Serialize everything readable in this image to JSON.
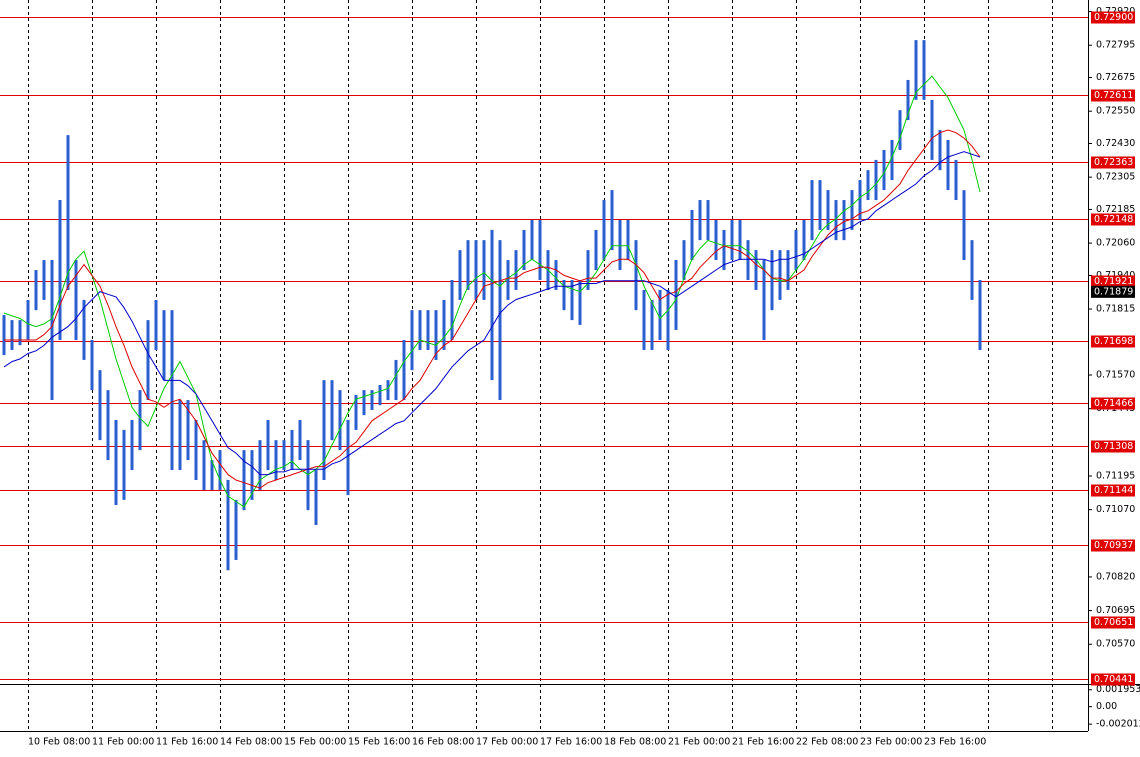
{
  "chart_data": {
    "type": "ohlc",
    "categories": [
      null,
      null,
      null,
      "10 Feb 08:00",
      null,
      null,
      null,
      null,
      null,
      null,
      null,
      "11 Feb 00:00",
      null,
      null,
      null,
      null,
      null,
      null,
      null,
      "11 Feb 16:00",
      null,
      null,
      null,
      null,
      null,
      null,
      null,
      "14 Feb 08:00",
      null,
      null,
      null,
      null,
      null,
      null,
      null,
      "15 Feb 00:00",
      null,
      null,
      null,
      null,
      null,
      null,
      null,
      "15 Feb 16:00",
      null,
      null,
      null,
      null,
      null,
      null,
      null,
      "16 Feb 08:00",
      null,
      null,
      null,
      null,
      null,
      null,
      null,
      "17 Feb 00:00",
      null,
      null,
      null,
      null,
      null,
      null,
      null,
      "17 Feb 16:00",
      null,
      null,
      null,
      null,
      null,
      null,
      null,
      "18 Feb 08:00",
      null,
      null,
      null,
      null,
      null,
      null,
      null,
      "21 Feb 00:00",
      null,
      null,
      null,
      null,
      null,
      null,
      null,
      "21 Feb 16:00",
      null,
      null,
      null,
      null,
      null,
      null,
      null,
      "22 Feb 08:00",
      null,
      null,
      null,
      null,
      null,
      null,
      null,
      "23 Feb 00:00",
      null,
      null,
      null,
      null,
      null,
      null,
      null,
      "23 Feb 16:00",
      null,
      null,
      null,
      null,
      null,
      null,
      null
    ],
    "bars": {
      "color": "#2a5fd0",
      "high": [
        0.71793,
        0.71774,
        0.71774,
        0.71849,
        0.7196,
        0.71997,
        0.71997,
        0.7222,
        0.72461,
        0.71997,
        0.71849,
        0.717,
        0.71588,
        0.71514,
        0.71403,
        0.71366,
        0.71403,
        0.71514,
        0.71774,
        0.71849,
        0.71811,
        0.71811,
        0.71477,
        0.71477,
        0.71403,
        0.71328,
        0.71254,
        0.71291,
        0.7118,
        0.71106,
        0.71291,
        0.71291,
        0.71328,
        0.71403,
        0.71328,
        0.71328,
        0.71366,
        0.71403,
        0.71328,
        0.71217,
        0.71551,
        0.71551,
        0.71514,
        0.71403,
        0.71496,
        0.71514,
        0.71514,
        0.71533,
        0.71551,
        0.71626,
        0.717,
        0.71811,
        0.71811,
        0.71811,
        0.71811,
        0.71849,
        0.71923,
        0.72034,
        0.72071,
        0.72071,
        0.72071,
        0.72109,
        0.72071,
        0.71997,
        0.72034,
        0.72109,
        0.72146,
        0.72146,
        0.72034,
        0.71997,
        0.71923,
        0.71923,
        0.71923,
        0.72034,
        0.72109,
        0.7222,
        0.72257,
        0.72146,
        0.72146,
        0.72071,
        0.71886,
        0.71849,
        0.71886,
        0.71886,
        0.71997,
        0.72071,
        0.72183,
        0.7222,
        0.7222,
        0.72146,
        0.72109,
        0.72146,
        0.72146,
        0.72071,
        0.72034,
        0.71997,
        0.72034,
        0.72034,
        0.72034,
        0.72109,
        0.72146,
        0.72294,
        0.72294,
        0.72257,
        0.7222,
        0.7222,
        0.72257,
        0.72294,
        0.72331,
        0.72369,
        0.72406,
        0.72443,
        0.72554,
        0.72666,
        0.72814,
        0.72814,
        0.72592,
        0.7248,
        0.72443,
        0.72369,
        0.72257,
        0.72071,
        0.71923
      ],
      "low": [
        0.71644,
        0.71663,
        0.71681,
        0.717,
        0.71811,
        0.71849,
        0.71477,
        0.717,
        0.71886,
        0.717,
        0.71626,
        0.71514,
        0.71328,
        0.71254,
        0.71087,
        0.71106,
        0.71217,
        0.71291,
        0.71477,
        0.71663,
        0.71551,
        0.71217,
        0.71217,
        0.71254,
        0.7118,
        0.71143,
        0.71143,
        0.71143,
        0.70845,
        0.70883,
        0.71068,
        0.71106,
        0.71143,
        0.71217,
        0.7118,
        0.71217,
        0.71217,
        0.71254,
        0.71068,
        0.71013,
        0.7118,
        0.71328,
        0.71291,
        0.71124,
        0.71366,
        0.71421,
        0.7144,
        0.71458,
        0.71477,
        0.71477,
        0.71477,
        0.71588,
        0.71663,
        0.71663,
        0.71626,
        0.71663,
        0.717,
        0.71849,
        0.71886,
        0.71849,
        0.71849,
        0.71551,
        0.71477,
        0.71849,
        0.71886,
        0.7196,
        0.71997,
        0.71923,
        0.71886,
        0.71886,
        0.71811,
        0.71774,
        0.71756,
        0.71886,
        0.7196,
        0.71997,
        0.72034,
        0.7196,
        0.71997,
        0.71811,
        0.71663,
        0.71663,
        0.717,
        0.71663,
        0.71737,
        0.71923,
        0.71997,
        0.72071,
        0.72071,
        0.71997,
        0.7196,
        0.71997,
        0.71997,
        0.71923,
        0.71886,
        0.717,
        0.71811,
        0.71849,
        0.71886,
        0.7196,
        0.71997,
        0.72071,
        0.72109,
        0.72109,
        0.72071,
        0.72071,
        0.72109,
        0.72146,
        0.7222,
        0.7222,
        0.72257,
        0.72294,
        0.72406,
        0.72517,
        0.72592,
        0.72592,
        0.72369,
        0.72331,
        0.72257,
        0.7222,
        0.71997,
        0.71849,
        0.71663
      ]
    },
    "moving_averages": [
      {
        "color": "#00cc00",
        "values": [
          0.718,
          0.7179,
          0.7178,
          0.7176,
          0.7175,
          0.7176,
          0.7178,
          0.7186,
          0.7195,
          0.72,
          0.7203,
          0.7194,
          0.7185,
          0.7174,
          0.7163,
          0.7154,
          0.7145,
          0.7141,
          0.7138,
          0.7145,
          0.7152,
          0.7157,
          0.7162,
          0.7156,
          0.715,
          0.7137,
          0.7125,
          0.7118,
          0.7112,
          0.711,
          0.7108,
          0.7113,
          0.7118,
          0.712,
          0.7122,
          0.7123,
          0.7125,
          0.7122,
          0.712,
          0.7122,
          0.7125,
          0.7131,
          0.7137,
          0.7143,
          0.7148,
          0.7149,
          0.715,
          0.7151,
          0.7152,
          0.7157,
          0.7162,
          0.7166,
          0.717,
          0.7169,
          0.7168,
          0.7171,
          0.7175,
          0.7183,
          0.719,
          0.7193,
          0.7195,
          0.7192,
          0.719,
          0.7193,
          0.7195,
          0.7198,
          0.72,
          0.7198,
          0.7196,
          0.7193,
          0.719,
          0.7189,
          0.7188,
          0.7191,
          0.7195,
          0.72,
          0.7205,
          0.7205,
          0.7205,
          0.7198,
          0.719,
          0.7184,
          0.7178,
          0.7181,
          0.7185,
          0.7193,
          0.72,
          0.7204,
          0.7207,
          0.7206,
          0.7205,
          0.7205,
          0.7205,
          0.7203,
          0.72,
          0.7196,
          0.7193,
          0.7192,
          0.7192,
          0.7196,
          0.72,
          0.7205,
          0.721,
          0.7213,
          0.7215,
          0.7218,
          0.722,
          0.7223,
          0.7225,
          0.7228,
          0.7232,
          0.7238,
          0.7245,
          0.7254,
          0.7262,
          0.7265,
          0.7268,
          0.7264,
          0.726,
          0.7254,
          0.7248,
          0.7237,
          0.7225
        ]
      },
      {
        "color": "#dd0000",
        "values": [
          0.717,
          0.717,
          0.717,
          0.717,
          0.717,
          0.7172,
          0.7175,
          0.7183,
          0.719,
          0.7194,
          0.7198,
          0.7194,
          0.719,
          0.7183,
          0.7175,
          0.7168,
          0.716,
          0.7154,
          0.7148,
          0.7147,
          0.7145,
          0.7147,
          0.7148,
          0.7144,
          0.714,
          0.7134,
          0.7128,
          0.7124,
          0.712,
          0.7118,
          0.7117,
          0.7116,
          0.7115,
          0.7117,
          0.7118,
          0.7119,
          0.712,
          0.7121,
          0.7122,
          0.7123,
          0.7123,
          0.7125,
          0.7127,
          0.713,
          0.7132,
          0.7136,
          0.714,
          0.7142,
          0.7144,
          0.7146,
          0.7148,
          0.7152,
          0.7155,
          0.716,
          0.7165,
          0.7168,
          0.717,
          0.7175,
          0.718,
          0.7185,
          0.719,
          0.7191,
          0.7192,
          0.7193,
          0.7193,
          0.7195,
          0.7196,
          0.7197,
          0.7197,
          0.7196,
          0.7194,
          0.7193,
          0.7192,
          0.7193,
          0.7193,
          0.7196,
          0.7199,
          0.72,
          0.72,
          0.7198,
          0.7195,
          0.719,
          0.7185,
          0.7187,
          0.7188,
          0.7191,
          0.7193,
          0.7197,
          0.72,
          0.7203,
          0.7205,
          0.7204,
          0.7203,
          0.7201,
          0.7198,
          0.7196,
          0.7193,
          0.7193,
          0.7192,
          0.7194,
          0.7196,
          0.7201,
          0.7205,
          0.7209,
          0.7212,
          0.7214,
          0.7215,
          0.7217,
          0.7218,
          0.722,
          0.7222,
          0.7225,
          0.7228,
          0.7233,
          0.7237,
          0.7241,
          0.7245,
          0.7247,
          0.7248,
          0.7247,
          0.7245,
          0.7242,
          0.7238
        ]
      },
      {
        "color": "#0000cc",
        "values": [
          0.716,
          0.7162,
          0.7163,
          0.7165,
          0.7166,
          0.7168,
          0.7171,
          0.7173,
          0.7175,
          0.7178,
          0.7182,
          0.7185,
          0.7188,
          0.7187,
          0.7186,
          0.7182,
          0.7177,
          0.7171,
          0.7165,
          0.716,
          0.7155,
          0.7155,
          0.7155,
          0.7153,
          0.715,
          0.7145,
          0.714,
          0.7135,
          0.713,
          0.7128,
          0.7125,
          0.7123,
          0.712,
          0.712,
          0.7121,
          0.7121,
          0.7122,
          0.7122,
          0.7122,
          0.7122,
          0.7122,
          0.7124,
          0.7125,
          0.7127,
          0.7129,
          0.7131,
          0.7133,
          0.7135,
          0.7137,
          0.7139,
          0.714,
          0.7143,
          0.7146,
          0.7149,
          0.7152,
          0.7156,
          0.716,
          0.7163,
          0.7166,
          0.7168,
          0.717,
          0.7175,
          0.718,
          0.7183,
          0.7185,
          0.7186,
          0.7187,
          0.7188,
          0.7189,
          0.719,
          0.719,
          0.719,
          0.7191,
          0.7191,
          0.7191,
          0.7192,
          0.7192,
          0.7192,
          0.7192,
          0.7192,
          0.7192,
          0.7191,
          0.719,
          0.7188,
          0.7186,
          0.7188,
          0.719,
          0.7192,
          0.7194,
          0.7196,
          0.7198,
          0.7199,
          0.72,
          0.72,
          0.72,
          0.72,
          0.7199,
          0.72,
          0.72,
          0.7201,
          0.7202,
          0.7204,
          0.7206,
          0.7208,
          0.721,
          0.7211,
          0.7212,
          0.7214,
          0.7215,
          0.7218,
          0.722,
          0.7222,
          0.7224,
          0.7226,
          0.7228,
          0.7231,
          0.7233,
          0.7236,
          0.7238,
          0.7239,
          0.724,
          0.7239,
          0.7238
        ]
      }
    ],
    "ylim": [
      0.70426,
      0.72963
    ],
    "yticks": [
      {
        "value": 0.7292,
        "label": "0.72920"
      },
      0.72795,
      0.72675,
      {
        "value": 0.7255,
        "label": "0.72550"
      },
      {
        "value": 0.7243,
        "label": "0.72430"
      },
      0.72305,
      0.72185,
      {
        "value": 0.7206,
        "label": "0.72060"
      },
      {
        "value": 0.7194,
        "label": "0.71940"
      },
      0.71815,
      {
        "value": 0.7157,
        "label": "0.71570"
      },
      0.71445,
      0.71195,
      {
        "value": 0.7107,
        "label": "0.71070"
      },
      {
        "value": 0.7082,
        "label": "0.70820"
      },
      0.70695,
      {
        "value": 0.7057,
        "label": "0.70570"
      }
    ],
    "levels": [
      {
        "value": 0.729,
        "label": "0.72900"
      },
      0.72611,
      0.72363,
      0.72148,
      0.71921,
      0.71698,
      0.71466,
      0.71308,
      0.71144,
      0.70937,
      0.70651,
      0.70441
    ],
    "level_color": "#e00000",
    "last_price": 0.71879,
    "indicator": {
      "ylim": [
        -0.0028,
        0.0025
      ],
      "yticks": [
        0.001953,
        {
          "value": 0,
          "label": "0.00"
        },
        -0.002012
      ]
    }
  }
}
